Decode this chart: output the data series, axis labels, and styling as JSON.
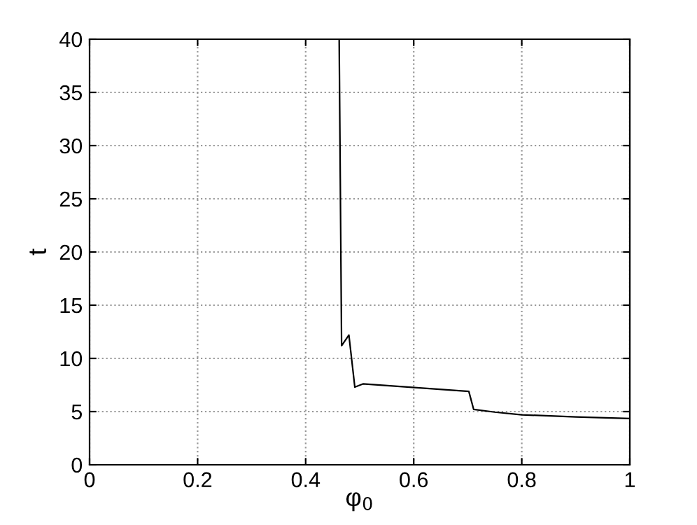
{
  "chart_data": {
    "type": "line",
    "xlabel": "φ$_{0}$",
    "ylabel": "t",
    "x": [
      0.462,
      0.4665,
      0.48,
      0.491,
      0.506,
      0.702,
      0.711,
      0.75,
      0.8,
      0.9,
      1.0
    ],
    "series": [
      {
        "color": "#000000",
        "values": [
          40,
          11.2,
          12.2,
          7.3,
          7.6,
          6.9,
          5.2,
          4.95,
          4.7,
          4.5,
          4.35
        ]
      }
    ],
    "xlim": [
      0,
      1
    ],
    "ylim": [
      0,
      40
    ],
    "xticks": [
      0,
      0.2,
      0.4,
      0.6,
      0.8,
      1
    ],
    "yticks": [
      0,
      5,
      10,
      15,
      20,
      25,
      30,
      35,
      40
    ],
    "grid": true,
    "line_style": "solid",
    "marker": "none"
  }
}
